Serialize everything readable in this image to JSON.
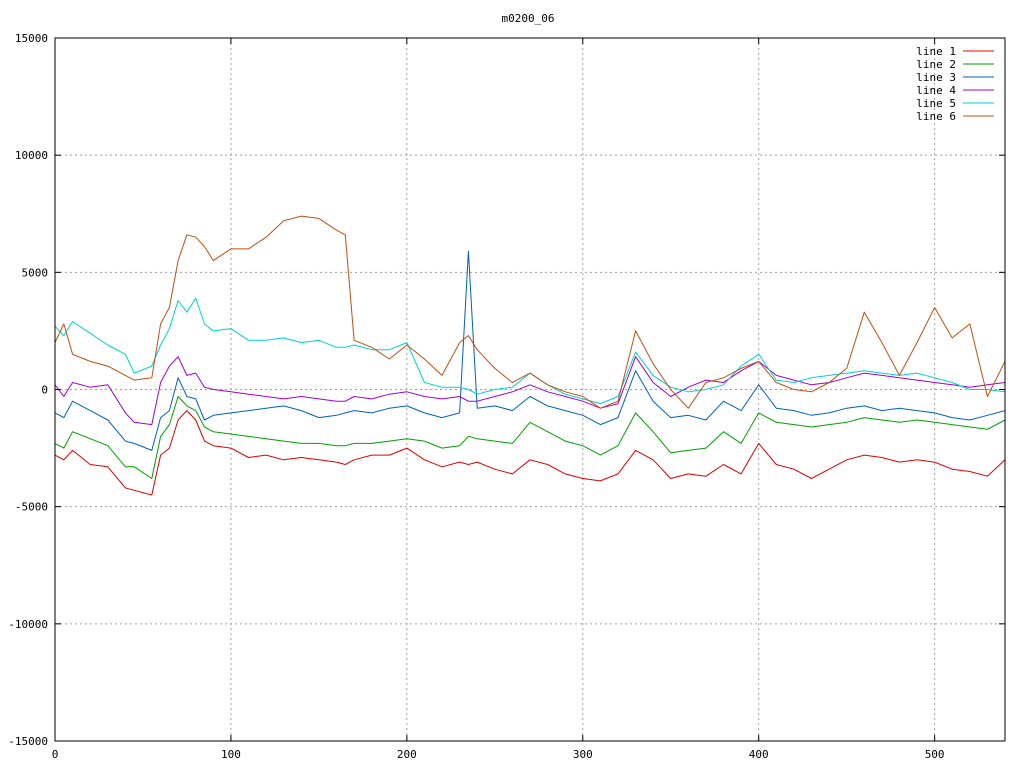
{
  "chart_data": {
    "type": "line",
    "title": "m0200_06",
    "xlabel": "",
    "ylabel": "",
    "xlim": [
      0,
      540
    ],
    "ylim": [
      -15000,
      15000
    ],
    "xticks": [
      0,
      100,
      200,
      300,
      400,
      500
    ],
    "yticks": [
      -15000,
      -10000,
      -5000,
      0,
      5000,
      10000,
      15000
    ],
    "grid": true,
    "legend_position": "top-right",
    "x": [
      0,
      5,
      10,
      20,
      30,
      40,
      45,
      55,
      60,
      65,
      70,
      75,
      80,
      85,
      90,
      100,
      110,
      120,
      130,
      140,
      150,
      160,
      165,
      170,
      180,
      190,
      200,
      210,
      220,
      230,
      235,
      240,
      250,
      260,
      270,
      280,
      290,
      300,
      310,
      320,
      330,
      340,
      350,
      360,
      370,
      380,
      390,
      400,
      410,
      420,
      430,
      440,
      450,
      460,
      470,
      480,
      490,
      500,
      510,
      520,
      530,
      540
    ],
    "series": [
      {
        "name": "line 1",
        "color": "#e00000",
        "values": [
          -2800,
          -3000,
          -2600,
          -3200,
          -3300,
          -4200,
          -4300,
          -4500,
          -2800,
          -2500,
          -1300,
          -900,
          -1300,
          -2200,
          -2400,
          -2500,
          -2900,
          -2800,
          -3000,
          -2900,
          -3000,
          -3100,
          -3200,
          -3000,
          -2800,
          -2800,
          -2500,
          -3000,
          -3300,
          -3100,
          -3200,
          -3100,
          -3400,
          -3600,
          -3000,
          -3200,
          -3600,
          -3800,
          -3900,
          -3600,
          -2600,
          -3000,
          -3800,
          -3600,
          -3700,
          -3200,
          -3600,
          -2300,
          -3200,
          -3400,
          -3800,
          -3400,
          -3000,
          -2800,
          -2900,
          -3100,
          -3000,
          -3100,
          -3400,
          -3500,
          -3700,
          -3000
        ]
      },
      {
        "name": "line 2",
        "color": "#00a000",
        "values": [
          -2300,
          -2500,
          -1800,
          -2100,
          -2400,
          -3300,
          -3300,
          -3800,
          -2000,
          -1500,
          -300,
          -700,
          -900,
          -1600,
          -1800,
          -1900,
          -2000,
          -2100,
          -2200,
          -2300,
          -2300,
          -2400,
          -2400,
          -2300,
          -2300,
          -2200,
          -2100,
          -2200,
          -2500,
          -2400,
          -2000,
          -2100,
          -2200,
          -2300,
          -1400,
          -1800,
          -2200,
          -2400,
          -2800,
          -2400,
          -1000,
          -1800,
          -2700,
          -2600,
          -2500,
          -1800,
          -2300,
          -1000,
          -1400,
          -1500,
          -1600,
          -1500,
          -1400,
          -1200,
          -1300,
          -1400,
          -1300,
          -1400,
          -1500,
          -1600,
          -1700,
          -1300
        ]
      },
      {
        "name": "line 3",
        "color": "#0060c0",
        "values": [
          -1000,
          -1200,
          -500,
          -900,
          -1300,
          -2200,
          -2300,
          -2600,
          -1200,
          -900,
          500,
          -300,
          -400,
          -1300,
          -1100,
          -1000,
          -900,
          -800,
          -700,
          -900,
          -1200,
          -1100,
          -1000,
          -900,
          -1000,
          -800,
          -700,
          -1000,
          -1200,
          -1000,
          5900,
          -800,
          -700,
          -900,
          -300,
          -700,
          -900,
          -1100,
          -1500,
          -1200,
          800,
          -500,
          -1200,
          -1100,
          -1300,
          -500,
          -900,
          200,
          -800,
          -900,
          -1100,
          -1000,
          -800,
          -700,
          -900,
          -800,
          -900,
          -1000,
          -1200,
          -1300,
          -1100,
          -900
        ]
      },
      {
        "name": "line 4",
        "color": "#a000d0",
        "values": [
          200,
          -300,
          300,
          100,
          200,
          -1000,
          -1400,
          -1500,
          300,
          1000,
          1400,
          600,
          700,
          100,
          0,
          -100,
          -200,
          -300,
          -400,
          -300,
          -400,
          -500,
          -500,
          -300,
          -400,
          -200,
          -100,
          -300,
          -400,
          -300,
          -500,
          -500,
          -300,
          -100,
          200,
          -100,
          -300,
          -500,
          -800,
          -600,
          1400,
          300,
          -300,
          100,
          400,
          300,
          800,
          1200,
          600,
          400,
          200,
          300,
          500,
          700,
          600,
          500,
          400,
          300,
          200,
          100,
          200,
          300
        ]
      },
      {
        "name": "line 5",
        "color": "#00d0d0",
        "values": [
          2700,
          2300,
          2900,
          2400,
          1900,
          1500,
          700,
          1000,
          1900,
          2600,
          3800,
          3300,
          3900,
          2800,
          2500,
          2600,
          2100,
          2100,
          2200,
          2000,
          2100,
          1800,
          1800,
          1900,
          1700,
          1700,
          2000,
          300,
          100,
          100,
          0,
          -200,
          0,
          100,
          700,
          200,
          -200,
          -400,
          -600,
          -300,
          1600,
          600,
          100,
          -100,
          0,
          200,
          1000,
          1500,
          400,
          300,
          500,
          600,
          700,
          800,
          700,
          600,
          700,
          500,
          300,
          0,
          0,
          -100
        ]
      },
      {
        "name": "line 6",
        "color": "#c05010",
        "values": [
          2000,
          2800,
          1500,
          1200,
          1000,
          600,
          400,
          500,
          2800,
          3500,
          5500,
          6600,
          6500,
          6100,
          5500,
          6000,
          6000,
          6500,
          7200,
          7400,
          7300,
          6800,
          6600,
          2100,
          1800,
          1300,
          1900,
          1300,
          600,
          2000,
          2300,
          1700,
          900,
          300,
          700,
          200,
          -100,
          -300,
          -800,
          -500,
          2500,
          1100,
          0,
          -800,
          300,
          500,
          900,
          1200,
          300,
          0,
          -100,
          300,
          900,
          3300,
          2000,
          600,
          2000,
          3500,
          2200,
          2800,
          -300,
          1200
        ]
      }
    ]
  }
}
